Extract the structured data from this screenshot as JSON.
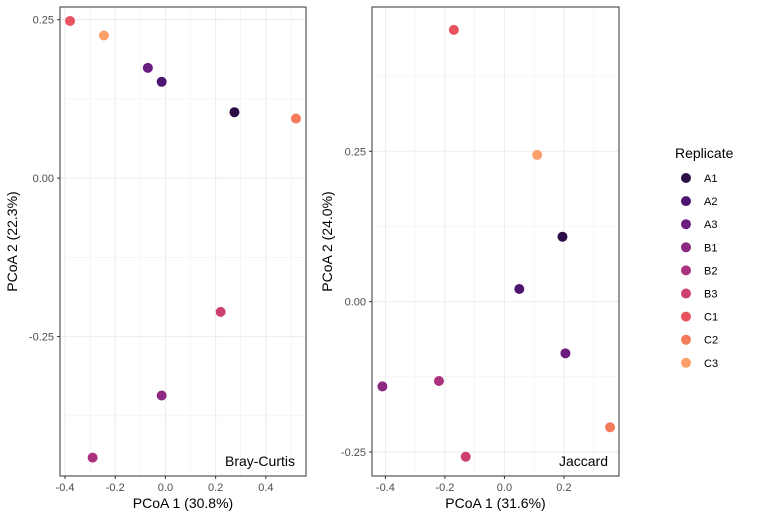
{
  "chart_data": [
    {
      "type": "scatter",
      "panel_label": "Bray-Curtis",
      "xlabel": "PCoA 1 (30.8%)",
      "ylabel": "PCoA 2 (22.3%)",
      "xlim": [
        -0.42,
        0.56
      ],
      "ylim": [
        -0.47,
        0.27
      ],
      "xticks": [
        -0.4,
        -0.2,
        0.0,
        0.2,
        0.4
      ],
      "xtick_labels": [
        "-0.4",
        "-0.2",
        "0.0",
        "0.2",
        "0.4"
      ],
      "yticks": [
        -0.25,
        0.0,
        0.25
      ],
      "ytick_labels": [
        "-0.25",
        "0.00",
        "0.25"
      ],
      "grid": true,
      "points": [
        {
          "replicate": "A1",
          "x": 0.275,
          "y": 0.104
        },
        {
          "replicate": "A2",
          "x": -0.015,
          "y": 0.152
        },
        {
          "replicate": "A3",
          "x": -0.07,
          "y": 0.174
        },
        {
          "replicate": "B1",
          "x": -0.015,
          "y": -0.343
        },
        {
          "replicate": "B2",
          "x": -0.29,
          "y": -0.441
        },
        {
          "replicate": "B3",
          "x": 0.22,
          "y": -0.211
        },
        {
          "replicate": "C1",
          "x": -0.38,
          "y": 0.248
        },
        {
          "replicate": "C2",
          "x": 0.52,
          "y": 0.094
        },
        {
          "replicate": "C3",
          "x": -0.245,
          "y": 0.225
        }
      ]
    },
    {
      "type": "scatter",
      "panel_label": "Jaccard",
      "xlabel": "PCoA 1 (31.6%)",
      "ylabel": "PCoA 2 (24.0%)",
      "xlim": [
        -0.445,
        0.385
      ],
      "ylim": [
        -0.29,
        0.49
      ],
      "xticks": [
        -0.4,
        -0.2,
        0.0,
        0.2
      ],
      "xtick_labels": [
        "-0.4",
        "-0.2",
        "0.0",
        "0.2"
      ],
      "yticks": [
        -0.25,
        0.0,
        0.25
      ],
      "ytick_labels": [
        "-0.25",
        "0.00",
        "0.25"
      ],
      "grid": true,
      "points": [
        {
          "replicate": "A1",
          "x": 0.195,
          "y": 0.108
        },
        {
          "replicate": "A2",
          "x": 0.05,
          "y": 0.021
        },
        {
          "replicate": "A3",
          "x": 0.205,
          "y": -0.086
        },
        {
          "replicate": "B1",
          "x": -0.41,
          "y": -0.141
        },
        {
          "replicate": "B2",
          "x": -0.22,
          "y": -0.132
        },
        {
          "replicate": "B3",
          "x": -0.13,
          "y": -0.258
        },
        {
          "replicate": "C1",
          "x": -0.17,
          "y": 0.452
        },
        {
          "replicate": "C2",
          "x": 0.355,
          "y": -0.209
        },
        {
          "replicate": "C3",
          "x": 0.11,
          "y": 0.244
        }
      ]
    }
  ],
  "legend": {
    "title": "Replicate",
    "placement": "right",
    "items": [
      {
        "label": "A1",
        "color": "#2a0e45"
      },
      {
        "label": "A2",
        "color": "#4d1470"
      },
      {
        "label": "A3",
        "color": "#6b1d7f"
      },
      {
        "label": "B1",
        "color": "#8c2981"
      },
      {
        "label": "B2",
        "color": "#ab317d"
      },
      {
        "label": "B3",
        "color": "#cd3f71"
      },
      {
        "label": "C1",
        "color": "#e9525f"
      },
      {
        "label": "C2",
        "color": "#f47a5c"
      },
      {
        "label": "C3",
        "color": "#fb9f6a"
      }
    ]
  }
}
